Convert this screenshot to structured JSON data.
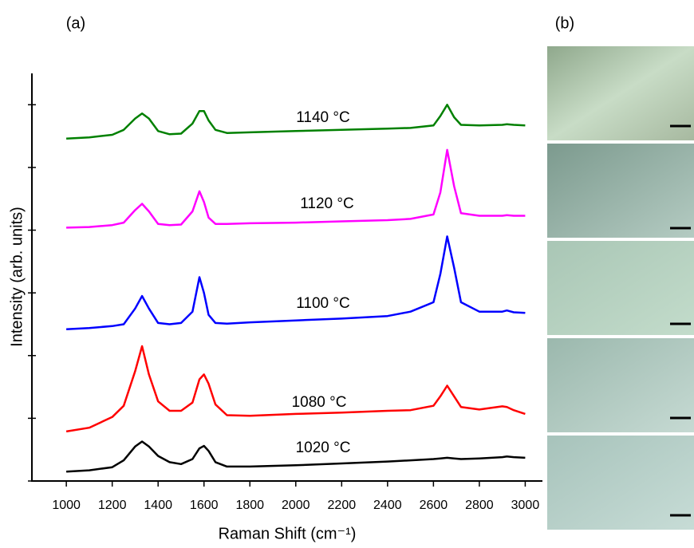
{
  "chart_data": {
    "type": "line",
    "panel_labels": [
      "(a)",
      "(b)"
    ],
    "x_label": "Raman Shift (cm⁻¹)",
    "y_label": "Intensity (arb. units)",
    "xlim": [
      850,
      3075
    ],
    "xticks": [
      1000,
      1200,
      1400,
      1600,
      1800,
      2000,
      2200,
      2400,
      2600,
      2800,
      3000
    ],
    "ylim": [
      0,
      6.5
    ],
    "yticks": [
      0,
      1,
      2,
      3,
      4,
      5,
      6
    ],
    "show_ytick_labels": false,
    "x": [
      1000,
      1100,
      1200,
      1250,
      1300,
      1330,
      1360,
      1400,
      1450,
      1500,
      1550,
      1580,
      1600,
      1620,
      1650,
      1700,
      1800,
      2000,
      2200,
      2400,
      2500,
      2600,
      2630,
      2660,
      2690,
      2720,
      2800,
      2900,
      2920,
      2950,
      3000
    ],
    "series": [
      {
        "name": "1020 °C",
        "color": "#000000",
        "values": [
          0.15,
          0.17,
          0.22,
          0.33,
          0.55,
          0.63,
          0.55,
          0.4,
          0.3,
          0.27,
          0.35,
          0.52,
          0.56,
          0.48,
          0.3,
          0.23,
          0.23,
          0.25,
          0.28,
          0.31,
          0.33,
          0.35,
          0.36,
          0.37,
          0.36,
          0.35,
          0.36,
          0.38,
          0.39,
          0.38,
          0.37
        ]
      },
      {
        "name": "1080 °C",
        "color": "#ff0000",
        "values": [
          0.79,
          0.85,
          1.02,
          1.2,
          1.75,
          2.15,
          1.7,
          1.27,
          1.12,
          1.12,
          1.25,
          1.62,
          1.7,
          1.55,
          1.22,
          1.05,
          1.04,
          1.07,
          1.09,
          1.12,
          1.13,
          1.2,
          1.35,
          1.52,
          1.35,
          1.18,
          1.14,
          1.19,
          1.18,
          1.13,
          1.07
        ]
      },
      {
        "name": "1100 °C",
        "color": "#0000ff",
        "values": [
          2.42,
          2.44,
          2.47,
          2.5,
          2.75,
          2.95,
          2.75,
          2.52,
          2.5,
          2.52,
          2.7,
          3.25,
          3.0,
          2.65,
          2.52,
          2.51,
          2.53,
          2.56,
          2.59,
          2.63,
          2.7,
          2.85,
          3.3,
          3.9,
          3.4,
          2.85,
          2.7,
          2.7,
          2.72,
          2.69,
          2.68
        ]
      },
      {
        "name": "1120 °C",
        "color": "#ff00ff",
        "values": [
          4.04,
          4.05,
          4.08,
          4.12,
          4.32,
          4.42,
          4.3,
          4.1,
          4.08,
          4.09,
          4.3,
          4.62,
          4.45,
          4.2,
          4.1,
          4.1,
          4.11,
          4.12,
          4.14,
          4.16,
          4.18,
          4.25,
          4.6,
          5.28,
          4.7,
          4.27,
          4.23,
          4.23,
          4.24,
          4.23,
          4.23
        ]
      },
      {
        "name": "1140 °C",
        "color": "#008000",
        "values": [
          5.46,
          5.48,
          5.52,
          5.6,
          5.78,
          5.86,
          5.78,
          5.58,
          5.53,
          5.54,
          5.7,
          5.9,
          5.9,
          5.75,
          5.6,
          5.55,
          5.56,
          5.58,
          5.6,
          5.62,
          5.63,
          5.67,
          5.82,
          6.0,
          5.8,
          5.68,
          5.67,
          5.68,
          5.69,
          5.68,
          5.67
        ]
      }
    ]
  }
}
